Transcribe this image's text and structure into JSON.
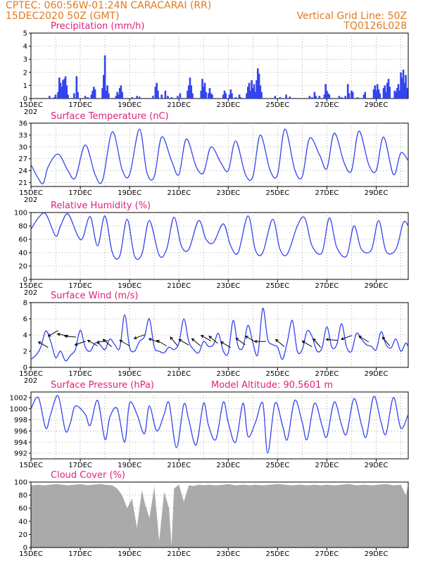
{
  "header": {
    "line1": "CPTEC:   060:56W-01:24N  CARACARAI (RR)",
    "line2": "15DEC2020 50Z (GMT)",
    "right1": "Vertical Grid Line: 50Z",
    "right2": "TQ0126L028",
    "color": "#e07a1f"
  },
  "colors": {
    "title": "#e0207a",
    "series": "#3344ee",
    "cloud": "#aaaaaa"
  },
  "chart_data": [
    {
      "type": "bar",
      "title": "Precipitation (mm/h)",
      "ylim": [
        0,
        5
      ],
      "yticks": [
        0,
        1,
        2,
        3,
        4,
        5
      ],
      "xticks": [
        "15DEC",
        "17DEC",
        "19DEC",
        "21DEC",
        "23DEC",
        "25DEC",
        "27DEC",
        "29DEC"
      ],
      "start_label": "202",
      "x_range_days": [
        0,
        15.3
      ],
      "bars": [
        [
          0.75,
          0.2
        ],
        [
          0.95,
          0.1
        ],
        [
          1.0,
          0.3
        ],
        [
          1.1,
          0.5
        ],
        [
          1.15,
          1.6
        ],
        [
          1.2,
          1.2
        ],
        [
          1.25,
          0.9
        ],
        [
          1.3,
          1.4
        ],
        [
          1.35,
          1.5
        ],
        [
          1.4,
          1.7
        ],
        [
          1.45,
          1.0
        ],
        [
          1.5,
          0.3
        ],
        [
          1.75,
          0.4
        ],
        [
          1.85,
          1.7
        ],
        [
          1.9,
          0.5
        ],
        [
          2.2,
          0.2
        ],
        [
          2.3,
          0.1
        ],
        [
          2.45,
          0.3
        ],
        [
          2.5,
          0.6
        ],
        [
          2.55,
          0.9
        ],
        [
          2.6,
          0.7
        ],
        [
          2.9,
          0.8
        ],
        [
          2.95,
          1.8
        ],
        [
          3.0,
          3.3
        ],
        [
          3.05,
          0.6
        ],
        [
          3.1,
          1.0
        ],
        [
          3.15,
          0.4
        ],
        [
          3.45,
          0.2
        ],
        [
          3.5,
          0.5
        ],
        [
          3.55,
          0.3
        ],
        [
          3.6,
          0.8
        ],
        [
          3.65,
          1.0
        ],
        [
          3.7,
          0.5
        ],
        [
          4.1,
          0.1
        ],
        [
          4.3,
          0.2
        ],
        [
          4.4,
          0.15
        ],
        [
          4.95,
          0.2
        ],
        [
          5.05,
          0.9
        ],
        [
          5.1,
          1.2
        ],
        [
          5.15,
          0.6
        ],
        [
          5.3,
          0.3
        ],
        [
          5.45,
          0.6
        ],
        [
          5.55,
          0.2
        ],
        [
          5.7,
          0.1
        ],
        [
          5.95,
          0.2
        ],
        [
          6.05,
          0.4
        ],
        [
          6.35,
          0.6
        ],
        [
          6.4,
          1.0
        ],
        [
          6.45,
          1.6
        ],
        [
          6.5,
          1.0
        ],
        [
          6.55,
          0.4
        ],
        [
          6.9,
          0.6
        ],
        [
          6.95,
          1.5
        ],
        [
          7.0,
          0.9
        ],
        [
          7.05,
          1.2
        ],
        [
          7.1,
          0.5
        ],
        [
          7.2,
          0.4
        ],
        [
          7.25,
          0.8
        ],
        [
          7.3,
          0.4
        ],
        [
          7.35,
          0.3
        ],
        [
          7.8,
          0.3
        ],
        [
          7.85,
          0.6
        ],
        [
          7.9,
          0.4
        ],
        [
          8.05,
          0.3
        ],
        [
          8.1,
          0.7
        ],
        [
          8.15,
          0.4
        ],
        [
          8.3,
          0.1
        ],
        [
          8.45,
          0.3
        ],
        [
          8.5,
          0.1
        ],
        [
          8.75,
          0.4
        ],
        [
          8.8,
          0.9
        ],
        [
          8.85,
          1.2
        ],
        [
          8.9,
          0.6
        ],
        [
          8.95,
          1.4
        ],
        [
          9.0,
          0.8
        ],
        [
          9.05,
          1.1
        ],
        [
          9.1,
          0.5
        ],
        [
          9.15,
          1.4
        ],
        [
          9.2,
          2.3
        ],
        [
          9.25,
          1.9
        ],
        [
          9.3,
          1.0
        ],
        [
          9.35,
          0.5
        ],
        [
          9.9,
          0.2
        ],
        [
          10.1,
          0.1
        ],
        [
          10.35,
          0.3
        ],
        [
          10.5,
          0.15
        ],
        [
          11.3,
          0.2
        ],
        [
          11.4,
          0.1
        ],
        [
          11.5,
          0.5
        ],
        [
          11.55,
          0.2
        ],
        [
          11.7,
          0.2
        ],
        [
          11.9,
          0.3
        ],
        [
          11.95,
          1.1
        ],
        [
          12.0,
          0.6
        ],
        [
          12.05,
          0.4
        ],
        [
          12.1,
          0.3
        ],
        [
          12.5,
          0.2
        ],
        [
          12.6,
          0.1
        ],
        [
          12.75,
          0.2
        ],
        [
          12.85,
          1.1
        ],
        [
          12.9,
          0.4
        ],
        [
          13.0,
          0.6
        ],
        [
          13.05,
          0.5
        ],
        [
          13.25,
          0.1
        ],
        [
          13.5,
          0.3
        ],
        [
          13.55,
          0.5
        ],
        [
          13.9,
          0.7
        ],
        [
          13.95,
          1.0
        ],
        [
          14.0,
          0.6
        ],
        [
          14.05,
          1.1
        ],
        [
          14.1,
          0.7
        ],
        [
          14.15,
          0.4
        ],
        [
          14.3,
          0.8
        ],
        [
          14.35,
          1.0
        ],
        [
          14.4,
          0.5
        ],
        [
          14.45,
          1.2
        ],
        [
          14.5,
          1.5
        ],
        [
          14.55,
          0.9
        ],
        [
          14.75,
          0.6
        ],
        [
          14.8,
          0.5
        ],
        [
          14.85,
          0.8
        ],
        [
          14.9,
          1.1
        ],
        [
          14.95,
          0.6
        ],
        [
          15.0,
          2.0
        ],
        [
          15.05,
          1.6
        ],
        [
          15.1,
          2.2
        ],
        [
          15.15,
          1.2
        ],
        [
          15.2,
          1.8
        ],
        [
          15.25,
          0.8
        ]
      ]
    },
    {
      "type": "line",
      "title": "Surface Temperature (nC)",
      "ylim": [
        20,
        36
      ],
      "yticks": [
        21,
        24,
        27,
        30,
        33,
        36
      ],
      "xticks": [
        "15DEC",
        "17DEC",
        "19DEC",
        "21DEC",
        "23DEC",
        "25DEC",
        "27DEC",
        "29DEC"
      ],
      "start_label": "202",
      "x": [
        0.0,
        0.3,
        0.5,
        0.7,
        1.1,
        1.5,
        1.8,
        2.2,
        2.6,
        2.9,
        3.3,
        3.7,
        4.0,
        4.4,
        4.7,
        5.0,
        5.3,
        5.7,
        6.0,
        6.3,
        6.7,
        7.0,
        7.3,
        7.7,
        8.0,
        8.3,
        8.7,
        9.0,
        9.3,
        9.7,
        10.0,
        10.3,
        10.7,
        11.0,
        11.3,
        11.7,
        12.0,
        12.3,
        12.7,
        13.0,
        13.3,
        13.7,
        14.0,
        14.3,
        14.7,
        15.0,
        15.3
      ],
      "values": [
        25.5,
        22.0,
        20.8,
        25.0,
        28.2,
        24.0,
        22.2,
        30.5,
        23.0,
        21.5,
        33.8,
        24.2,
        23.0,
        34.5,
        23.5,
        22.5,
        32.5,
        26.5,
        23.0,
        32.0,
        25.0,
        23.5,
        30.0,
        26.0,
        24.0,
        31.5,
        23.0,
        22.5,
        33.0,
        24.0,
        23.0,
        34.5,
        24.2,
        22.5,
        32.2,
        28.0,
        24.5,
        33.5,
        26.0,
        24.0,
        34.0,
        25.5,
        24.0,
        32.5,
        23.0,
        28.5,
        26.5
      ]
    },
    {
      "type": "line",
      "title": "Relative Humidity (%)",
      "ylim": [
        0,
        100
      ],
      "yticks": [
        0,
        20,
        40,
        60,
        80,
        100
      ],
      "xticks": [
        "15DEC",
        "17DEC",
        "19DEC",
        "21DEC",
        "23DEC",
        "25DEC",
        "27DEC",
        "29DEC"
      ],
      "start_label": "202",
      "x": [
        0.0,
        0.3,
        0.6,
        1.0,
        1.2,
        1.5,
        1.9,
        2.1,
        2.4,
        2.7,
        3.0,
        3.3,
        3.6,
        3.9,
        4.2,
        4.5,
        4.8,
        5.2,
        5.5,
        5.8,
        6.1,
        6.4,
        6.8,
        7.1,
        7.4,
        7.8,
        8.1,
        8.4,
        8.8,
        9.1,
        9.4,
        9.8,
        10.1,
        10.4,
        10.8,
        11.1,
        11.4,
        11.8,
        12.1,
        12.4,
        12.8,
        13.1,
        13.4,
        13.8,
        14.1,
        14.4,
        14.8,
        15.1,
        15.3
      ],
      "values": [
        75,
        92,
        98,
        65,
        80,
        98,
        65,
        62,
        94,
        50,
        95,
        40,
        35,
        90,
        35,
        38,
        88,
        36,
        45,
        93,
        50,
        45,
        88,
        60,
        55,
        83,
        50,
        40,
        95,
        44,
        40,
        90,
        45,
        38,
        80,
        92,
        50,
        40,
        92,
        48,
        35,
        80,
        45,
        44,
        88,
        42,
        45,
        85,
        80
      ]
    },
    {
      "type": "line",
      "title": "Surface Wind (m/s)",
      "ylim": [
        0,
        8
      ],
      "yticks": [
        0,
        2,
        4,
        6,
        8
      ],
      "xticks": [
        "15DEC",
        "17DEC",
        "19DEC",
        "21DEC",
        "23DEC",
        "25DEC",
        "27DEC",
        "29DEC"
      ],
      "start_label": "202",
      "x": [
        0.0,
        0.2,
        0.4,
        0.6,
        0.8,
        1.0,
        1.2,
        1.4,
        1.6,
        1.8,
        2.0,
        2.2,
        2.4,
        2.6,
        2.8,
        3.0,
        3.2,
        3.4,
        3.6,
        3.8,
        4.0,
        4.2,
        4.4,
        4.6,
        4.8,
        5.0,
        5.2,
        5.4,
        5.6,
        5.8,
        6.0,
        6.2,
        6.4,
        6.6,
        6.8,
        7.0,
        7.2,
        7.4,
        7.6,
        7.8,
        8.0,
        8.2,
        8.4,
        8.6,
        8.8,
        9.0,
        9.2,
        9.4,
        9.6,
        9.8,
        10.0,
        10.2,
        10.4,
        10.6,
        10.8,
        11.0,
        11.2,
        11.4,
        11.6,
        11.8,
        12.0,
        12.2,
        12.4,
        12.6,
        12.8,
        13.0,
        13.2,
        13.4,
        13.6,
        13.8,
        14.0,
        14.2,
        14.4,
        14.6,
        14.8,
        15.0,
        15.2,
        15.3
      ],
      "values": [
        1.0,
        1.5,
        2.5,
        4.5,
        3.2,
        1.2,
        2.0,
        0.8,
        1.5,
        2.2,
        4.6,
        2.5,
        2.0,
        3.0,
        2.8,
        2.2,
        3.5,
        2.8,
        2.4,
        6.5,
        2.5,
        2.0,
        3.2,
        3.8,
        6.0,
        2.5,
        2.0,
        1.8,
        2.5,
        2.2,
        3.0,
        6.0,
        3.2,
        2.2,
        1.8,
        3.2,
        2.6,
        2.8,
        4.2,
        2.0,
        1.8,
        5.8,
        2.6,
        2.5,
        5.2,
        3.0,
        1.6,
        7.3,
        3.5,
        2.8,
        2.5,
        1.0,
        3.2,
        5.8,
        2.0,
        2.2,
        4.5,
        3.8,
        2.0,
        2.4,
        5.0,
        2.5,
        2.8,
        5.4,
        2.5,
        2.0,
        4.2,
        3.5,
        2.8,
        2.6,
        2.2,
        4.4,
        2.8,
        2.4,
        3.5,
        2.0,
        3.0,
        2.5
      ],
      "arrows": [
        [
          0.5,
          2.8,
          150
        ],
        [
          0.9,
          4.2,
          210
        ],
        [
          1.3,
          4.0,
          170
        ],
        [
          1.6,
          3.8,
          175
        ],
        [
          2.0,
          3.0,
          200
        ],
        [
          2.5,
          3.0,
          150
        ],
        [
          2.9,
          3.2,
          190
        ],
        [
          3.1,
          3.0,
          140
        ],
        [
          3.8,
          3.0,
          150
        ],
        [
          4.4,
          3.8,
          200
        ],
        [
          5.0,
          3.3,
          160
        ],
        [
          5.3,
          3.0,
          150
        ],
        [
          5.8,
          3.2,
          130
        ],
        [
          6.2,
          3.1,
          150
        ],
        [
          6.7,
          3.1,
          140
        ],
        [
          7.1,
          3.6,
          150
        ],
        [
          7.4,
          3.4,
          140
        ],
        [
          7.9,
          2.8,
          150
        ],
        [
          8.5,
          3.2,
          145
        ],
        [
          8.9,
          3.5,
          150
        ],
        [
          9.3,
          3.2,
          180
        ],
        [
          10.1,
          3.0,
          140
        ],
        [
          11.2,
          2.9,
          150
        ],
        [
          11.6,
          3.0,
          130
        ],
        [
          12.2,
          3.4,
          175
        ],
        [
          12.8,
          3.7,
          200
        ],
        [
          13.5,
          3.5,
          150
        ],
        [
          14.4,
          3.2,
          130
        ]
      ]
    },
    {
      "type": "line",
      "title": "Surface Pressure (hPa)",
      "subtitle": "Model Altitude: 90.5601  m",
      "ylim": [
        991,
        1003
      ],
      "yticks": [
        992,
        994,
        996,
        998,
        1000,
        1002
      ],
      "xticks": [
        "15DEC",
        "17DEC",
        "19DEC",
        "21DEC",
        "23DEC",
        "25DEC",
        "27DEC",
        "29DEC"
      ],
      "start_label": "",
      "x": [
        0.0,
        0.3,
        0.6,
        0.8,
        1.1,
        1.4,
        1.6,
        1.8,
        2.2,
        2.4,
        2.7,
        3.0,
        3.2,
        3.5,
        3.8,
        4.0,
        4.3,
        4.6,
        4.8,
        5.1,
        5.4,
        5.6,
        5.9,
        6.2,
        6.4,
        6.7,
        7.0,
        7.2,
        7.5,
        7.8,
        8.0,
        8.3,
        8.6,
        8.8,
        9.1,
        9.4,
        9.6,
        9.9,
        10.2,
        10.4,
        10.7,
        11.0,
        11.2,
        11.5,
        11.8,
        12.0,
        12.3,
        12.6,
        12.8,
        13.1,
        13.4,
        13.6,
        13.9,
        14.2,
        14.4,
        14.7,
        15.0,
        15.3
      ],
      "values": [
        1000.0,
        1002.0,
        996.5,
        999.0,
        1002.3,
        996.0,
        997.5,
        1000.5,
        999.0,
        997.0,
        1001.5,
        994.5,
        998.5,
        1000.0,
        994.0,
        1001.0,
        999.0,
        995.5,
        1000.5,
        996.0,
        999.0,
        1001.0,
        993.0,
        1000.8,
        998.0,
        993.5,
        1001.0,
        997.0,
        994.5,
        1001.2,
        997.5,
        994.0,
        1001.0,
        995.0,
        997.5,
        1001.0,
        992.0,
        1001.0,
        997.0,
        994.5,
        1001.5,
        997.5,
        994.5,
        1001.0,
        997.0,
        995.0,
        1001.2,
        997.0,
        995.5,
        1001.8,
        997.2,
        995.0,
        1002.2,
        997.5,
        995.5,
        1002.0,
        996.5,
        999.0
      ]
    },
    {
      "type": "area",
      "title": "Cloud Cover (%)",
      "ylim": [
        0,
        100
      ],
      "yticks": [
        0,
        20,
        40,
        60,
        80,
        100
      ],
      "xticks": [
        "15DEC",
        "17DEC",
        "19DEC",
        "21DEC",
        "23DEC",
        "25DEC",
        "27DEC",
        "29DEC"
      ],
      "start_label": "",
      "x": [
        0.0,
        0.3,
        0.5,
        0.8,
        1.0,
        1.3,
        1.5,
        1.8,
        2.0,
        2.3,
        2.5,
        2.8,
        3.0,
        3.3,
        3.5,
        3.7,
        3.9,
        4.1,
        4.3,
        4.5,
        4.6,
        4.8,
        5.0,
        5.2,
        5.4,
        5.6,
        5.7,
        5.8,
        6.0,
        6.2,
        6.4,
        6.6,
        6.8,
        7.0,
        7.2,
        7.5,
        7.8,
        8.0,
        8.3,
        8.6,
        8.9,
        9.1,
        9.4,
        9.7,
        10.0,
        10.3,
        10.6,
        10.9,
        11.2,
        11.5,
        11.8,
        12.0,
        12.3,
        12.6,
        12.9,
        13.2,
        13.5,
        13.8,
        14.1,
        14.4,
        14.7,
        15.0,
        15.2,
        15.3
      ],
      "values": [
        95,
        96,
        95,
        96,
        97,
        96,
        95,
        96,
        97,
        95,
        96,
        97,
        96,
        95,
        90,
        80,
        60,
        75,
        30,
        88,
        70,
        45,
        92,
        10,
        85,
        60,
        2,
        90,
        96,
        70,
        95,
        94,
        96,
        95,
        96,
        95,
        96,
        97,
        95,
        96,
        95,
        96,
        95,
        96,
        97,
        96,
        95,
        96,
        95,
        96,
        95,
        96,
        95,
        96,
        97,
        95,
        96,
        95,
        96,
        97,
        95,
        96,
        80,
        96
      ]
    }
  ]
}
